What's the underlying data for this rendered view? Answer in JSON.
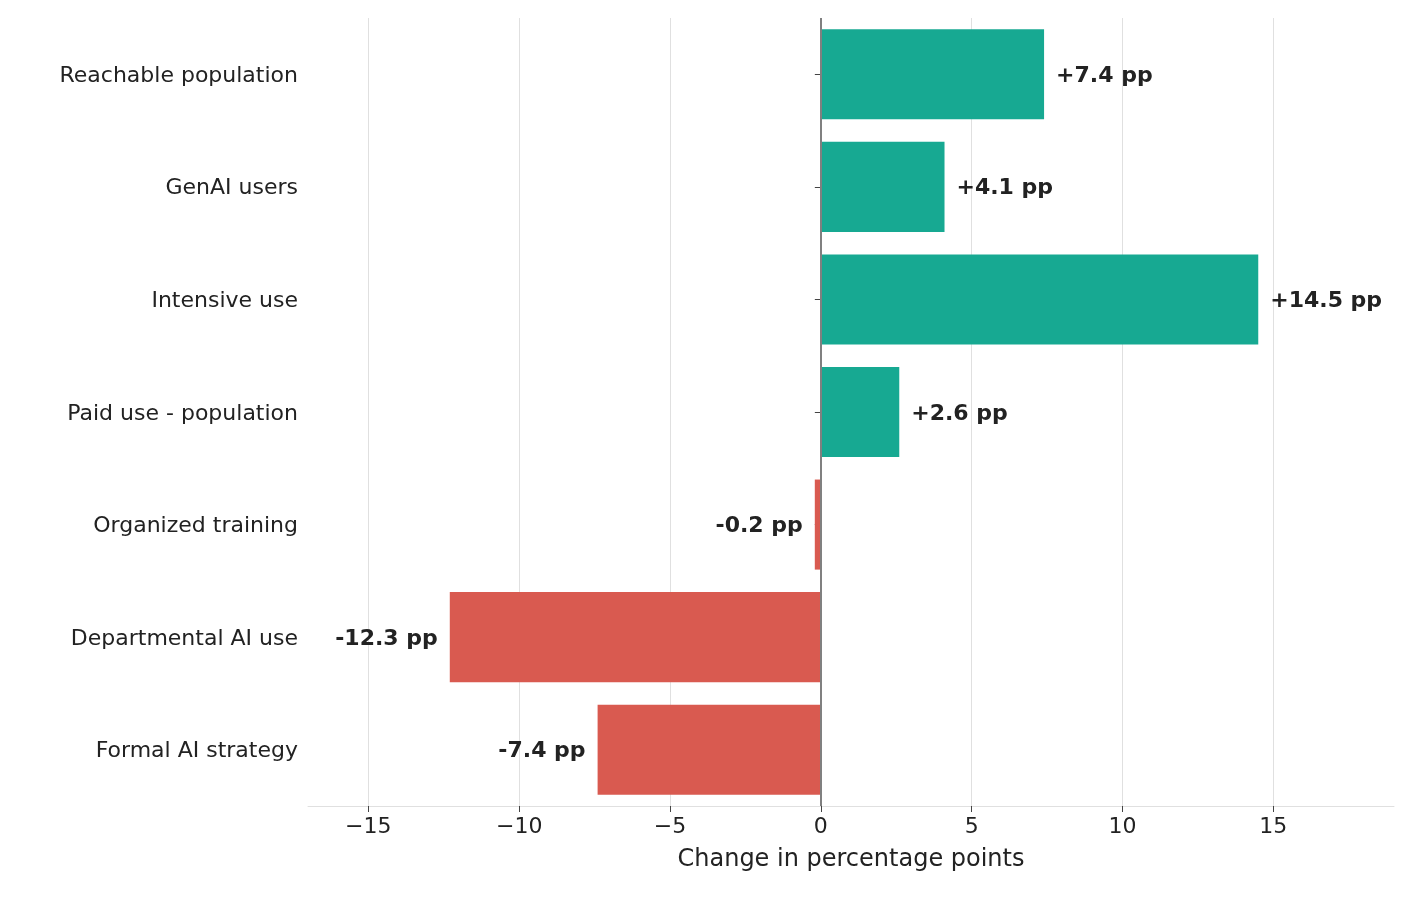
{
  "chart_data": {
    "type": "bar",
    "orientation": "horizontal",
    "xlabel": "Change in percentage points",
    "categories": [
      "Reachable population",
      "GenAI users",
      "Intensive use",
      "Paid use - population",
      "Organized training",
      "Departmental AI use",
      "Formal AI strategy"
    ],
    "values": [
      7.4,
      4.1,
      14.5,
      2.6,
      -0.2,
      -12.3,
      -7.4
    ],
    "colors": [
      "#17a992",
      "#17a992",
      "#17a992",
      "#17a992",
      "#d95a50",
      "#d95a50",
      "#d95a50"
    ],
    "value_labels": [
      "+7.4 pp",
      "+4.1 pp",
      "+14.5 pp",
      "+2.6 pp",
      "-0.2 pp",
      "-12.3 pp",
      "-7.4 pp"
    ],
    "xticks": [
      {
        "value": -15,
        "label": "−15"
      },
      {
        "value": -10,
        "label": "−10"
      },
      {
        "value": -5,
        "label": "−5"
      },
      0,
      5,
      10,
      15
    ],
    "xlim": [
      -17,
      19
    ],
    "grid": "x",
    "ref_lines": [
      {
        "axis": "x",
        "value": 0,
        "label": null,
        "color": "#808080"
      }
    ]
  }
}
